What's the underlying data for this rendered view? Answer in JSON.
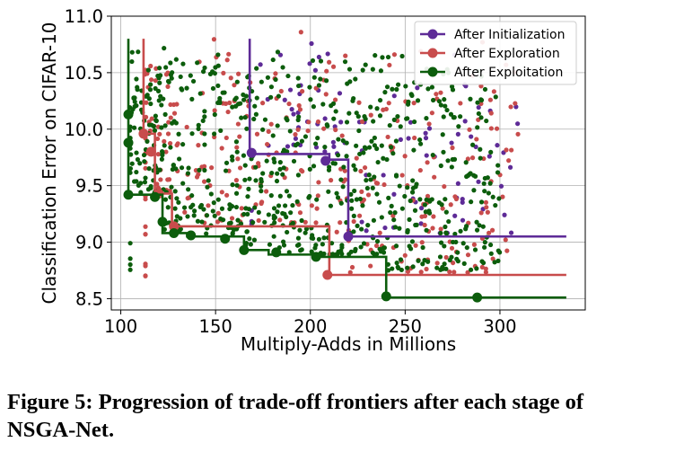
{
  "chart_data": {
    "type": "scatter",
    "title": "",
    "xlabel": "Multiply-Adds in Millions",
    "ylabel": "Classification Error on CIFAR-10",
    "xlim": [
      95,
      345
    ],
    "ylim": [
      8.4,
      11.0
    ],
    "xticks": [
      100,
      150,
      200,
      250,
      300
    ],
    "yticks": [
      8.5,
      9.0,
      9.5,
      10.0,
      10.5,
      11.0
    ],
    "xtick_labels": [
      "100",
      "150",
      "200",
      "250",
      "300"
    ],
    "ytick_labels": [
      "8.5",
      "9.0",
      "9.5",
      "10.0",
      "10.5",
      "11.0"
    ],
    "grid": true,
    "legend_position": "top-right",
    "series": [
      {
        "name": "After Initialization",
        "color": "#5e2b97",
        "cloud": {
          "count": 90,
          "x_range": [
            165,
            310
          ],
          "y_range": [
            8.9,
            10.9
          ]
        },
        "frontier": [
          [
            168,
            10.8
          ],
          [
            168,
            9.78
          ],
          [
            210,
            9.78
          ],
          [
            210,
            9.73
          ],
          [
            220,
            9.73
          ],
          [
            220,
            9.05
          ],
          [
            335,
            9.05
          ]
        ],
        "frontier_points": [
          [
            220,
            9.05
          ],
          [
            208,
            9.72
          ],
          [
            169,
            9.79
          ]
        ]
      },
      {
        "name": "After Exploration",
        "color": "#c84c4c",
        "cloud": {
          "count": 320,
          "x_range": [
            108,
            310
          ],
          "y_range": [
            8.7,
            10.9
          ]
        },
        "frontier": [
          [
            112,
            10.8
          ],
          [
            112,
            9.96
          ],
          [
            118,
            9.96
          ],
          [
            118,
            9.43
          ],
          [
            127,
            9.43
          ],
          [
            127,
            9.14
          ],
          [
            210,
            9.14
          ],
          [
            210,
            8.71
          ],
          [
            335,
            8.71
          ]
        ],
        "frontier_points": [
          [
            112,
            9.96
          ],
          [
            116,
            9.8
          ],
          [
            120,
            9.43
          ],
          [
            128,
            9.14
          ],
          [
            209,
            8.71
          ]
        ]
      },
      {
        "name": "After Exploitation",
        "color": "#0c5d0c",
        "cloud": {
          "count": 720,
          "x_range": [
            103,
            300
          ],
          "y_range": [
            8.75,
            10.8
          ]
        },
        "frontier": [
          [
            104,
            10.8
          ],
          [
            104,
            9.42
          ],
          [
            122,
            9.42
          ],
          [
            122,
            9.08
          ],
          [
            135,
            9.08
          ],
          [
            135,
            9.05
          ],
          [
            165,
            9.05
          ],
          [
            165,
            8.93
          ],
          [
            178,
            8.93
          ],
          [
            178,
            8.89
          ],
          [
            203,
            8.89
          ],
          [
            203,
            8.87
          ],
          [
            240,
            8.87
          ],
          [
            240,
            8.51
          ],
          [
            335,
            8.51
          ]
        ],
        "frontier_points": [
          [
            104,
            10.13
          ],
          [
            104,
            9.88
          ],
          [
            104,
            9.42
          ],
          [
            118,
            9.4
          ],
          [
            122,
            9.18
          ],
          [
            128,
            9.08
          ],
          [
            137,
            9.06
          ],
          [
            155,
            9.03
          ],
          [
            165,
            8.93
          ],
          [
            182,
            8.91
          ],
          [
            203,
            8.87
          ],
          [
            240,
            8.52
          ],
          [
            288,
            8.51
          ]
        ]
      }
    ],
    "legend": [
      "After Initialization",
      "After Exploration",
      "After Exploitation"
    ],
    "grid_color": "#b0b0b0"
  },
  "caption": {
    "line1": "Figure 5: Progression of trade-off frontiers after each stage of",
    "line2": "NSGA-Net."
  }
}
